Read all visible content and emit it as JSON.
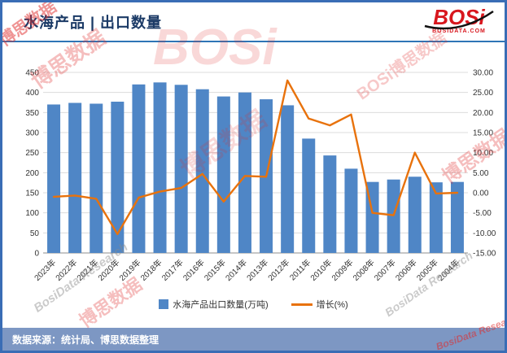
{
  "header": {
    "title": "水海产品 | 出口数量"
  },
  "logo": {
    "name": "BOSi",
    "domain": "BOSIDATA.COM"
  },
  "legend": {
    "bars": "水海产品出口数量(万吨)",
    "line": "增长(%)"
  },
  "footer": {
    "source": "数据来源：统计局、博思数据整理"
  },
  "watermarks": [
    "BOSi",
    "博思数据",
    "博思数据",
    "博思数据",
    "BosiData Research",
    "BosiData Research",
    "博思数据",
    "BOSi博思数据",
    "博思数据",
    "BosiData Research"
  ],
  "colors": {
    "bar": "#4f86c6",
    "line": "#e8720c",
    "frame": "#3a6db5",
    "rule": "#2e75b6",
    "title": "#1b3a66",
    "footer_bg": "#7d97c3",
    "logo_red": "#d8171e",
    "watermark_red": "#e02b2b",
    "watermark_gray": "#8c8c8c"
  },
  "chart_data": {
    "type": "bar",
    "title": "水海产品 | 出口数量",
    "categories": [
      "2023年",
      "2022年",
      "2021年",
      "2020年",
      "2019年",
      "2018年",
      "2017年",
      "2016年",
      "2015年",
      "2014年",
      "2013年",
      "2012年",
      "2011年",
      "2010年",
      "2009年",
      "2008年",
      "2007年",
      "2006年",
      "2005年",
      "2004年"
    ],
    "series": [
      {
        "name": "水海产品出口数量(万吨)",
        "type": "bar",
        "axis": "left",
        "values": [
          370,
          374,
          372,
          377,
          420,
          425,
          419,
          408,
          390,
          400,
          383,
          368,
          285,
          243,
          210,
          177,
          183,
          190,
          176,
          177
        ]
      },
      {
        "name": "增长(%)",
        "type": "line",
        "axis": "right",
        "values": [
          -1.0,
          -0.7,
          -1.5,
          -10.3,
          -1.2,
          0.3,
          1.2,
          4.7,
          -2.2,
          4.2,
          4.0,
          28.0,
          18.5,
          16.8,
          19.5,
          -5.0,
          -5.6,
          10.0,
          -0.2,
          0.0
        ]
      }
    ],
    "left_axis": {
      "min": 0,
      "max": 450,
      "step": 50
    },
    "right_axis": {
      "min": -15,
      "max": 30,
      "step": 5,
      "decimals": 2
    },
    "grid": true,
    "legend_position": "bottom"
  }
}
